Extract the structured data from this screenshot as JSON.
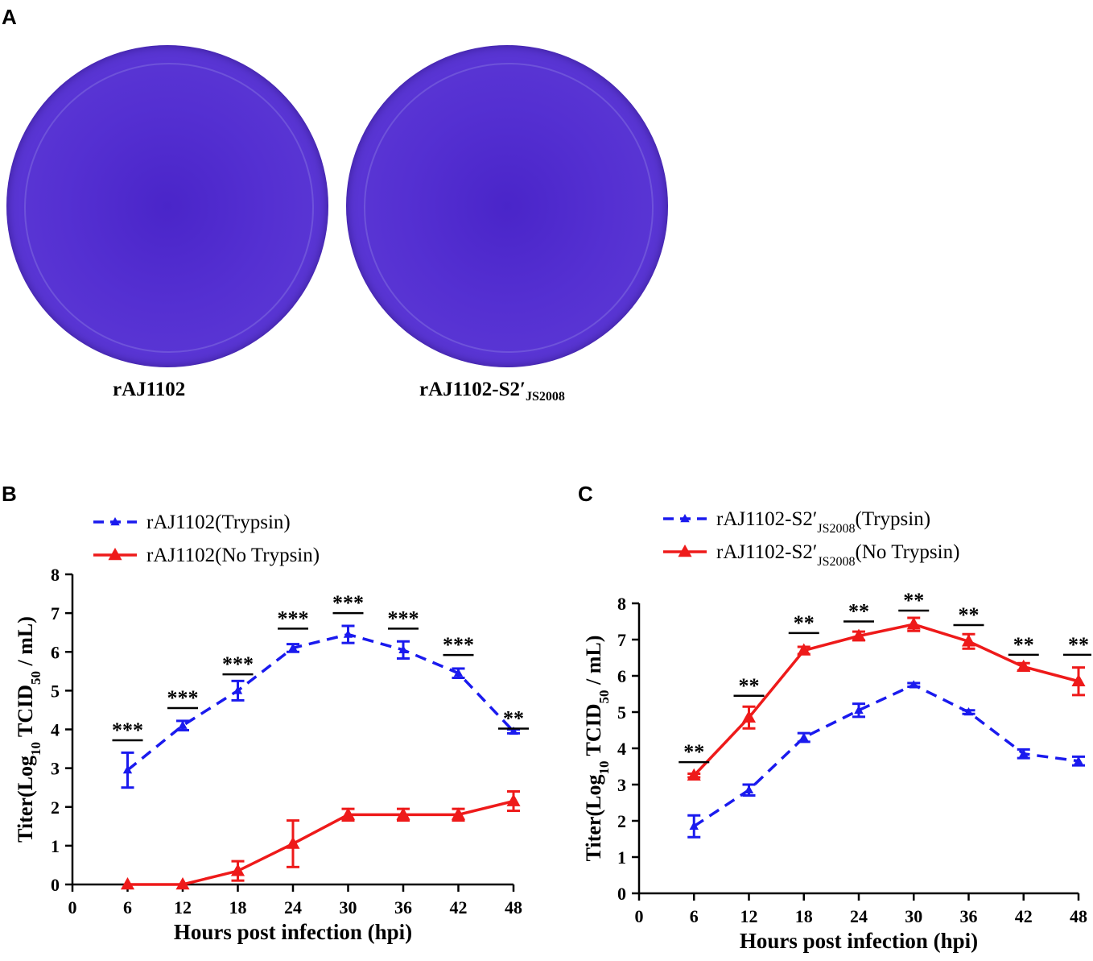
{
  "panels": {
    "a": {
      "letter": "A"
    },
    "b": {
      "letter": "B"
    },
    "c": {
      "letter": "C"
    }
  },
  "plates": [
    {
      "label": "rAJ1102",
      "sub": ""
    },
    {
      "label": "rAJ1102-S2′",
      "sub": "JS2008"
    }
  ],
  "colors": {
    "trypsin": "#1a1aee",
    "no_trypsin": "#ee1a1a",
    "plate": "#5530d2"
  },
  "chart_data": [
    {
      "type": "line",
      "panel": "B",
      "xlabel": "Hours post infection (hpi)",
      "ylabel_parts": [
        "Titer(Log",
        "10",
        " TCID",
        "50",
        " / mL)"
      ],
      "x_ticks": [
        0,
        6,
        12,
        18,
        24,
        30,
        36,
        42,
        48
      ],
      "y_ticks": [
        0,
        1,
        2,
        3,
        4,
        5,
        6,
        7,
        8
      ],
      "xlim": [
        0,
        48
      ],
      "ylim": [
        0,
        8
      ],
      "x": [
        6,
        12,
        18,
        24,
        30,
        36,
        42,
        48
      ],
      "series": [
        {
          "name": "rAJ1102(Trypsin)",
          "name_parts": [
            "rAJ1102(Trypsin)"
          ],
          "style": "dashed",
          "color": "#1a1aee",
          "values": [
            2.95,
            4.1,
            5.0,
            6.1,
            6.45,
            6.05,
            5.45,
            3.95
          ],
          "errors": [
            0.45,
            0.12,
            0.25,
            0.1,
            0.22,
            0.22,
            0.12,
            0.05
          ]
        },
        {
          "name": "rAJ1102(No Trypsin)",
          "name_parts": [
            "rAJ1102(No Trypsin)"
          ],
          "style": "solid",
          "color": "#ee1a1a",
          "values": [
            0.0,
            0.0,
            0.35,
            1.05,
            1.8,
            1.8,
            1.8,
            2.15
          ],
          "errors": [
            0.0,
            0.0,
            0.25,
            0.6,
            0.15,
            0.15,
            0.15,
            0.25
          ]
        }
      ],
      "significance": [
        "***",
        "***",
        "***",
        "***",
        "***",
        "***",
        "***",
        "**"
      ],
      "sig_levels": [
        3.72,
        4.55,
        5.42,
        6.6,
        7.0,
        6.6,
        5.92,
        4.02
      ]
    },
    {
      "type": "line",
      "panel": "C",
      "xlabel": "Hours post infection (hpi)",
      "ylabel_parts": [
        "Titer(Log",
        "10",
        " TCID",
        "50",
        " / mL)"
      ],
      "x_ticks": [
        0,
        6,
        12,
        18,
        24,
        30,
        36,
        42,
        48
      ],
      "y_ticks": [
        0,
        1,
        2,
        3,
        4,
        5,
        6,
        7,
        8
      ],
      "xlim": [
        0,
        48
      ],
      "ylim": [
        0,
        8
      ],
      "x": [
        6,
        12,
        18,
        24,
        30,
        36,
        42,
        48
      ],
      "series": [
        {
          "name": "rAJ1102-S2′JS2008(Trypsin)",
          "name_parts": [
            "rAJ1102-S2′",
            "JS2008",
            "(Trypsin)"
          ],
          "style": "dashed",
          "color": "#1a1aee",
          "values": [
            1.85,
            2.85,
            4.3,
            5.05,
            5.75,
            5.0,
            3.85,
            3.65
          ],
          "errors": [
            0.3,
            0.15,
            0.12,
            0.18,
            0.05,
            0.05,
            0.12,
            0.12
          ]
        },
        {
          "name": "rAJ1102-S2′JS2008(No Trypsin)",
          "name_parts": [
            "rAJ1102-S2′",
            "JS2008",
            "(No Trypsin)"
          ],
          "style": "solid",
          "color": "#ee1a1a",
          "values": [
            3.25,
            4.85,
            6.7,
            7.1,
            7.42,
            6.95,
            6.25,
            5.85
          ],
          "errors": [
            0.05,
            0.3,
            0.1,
            0.12,
            0.18,
            0.2,
            0.1,
            0.38
          ]
        }
      ],
      "significance": [
        "**",
        "**",
        "**",
        "**",
        "**",
        "**",
        "**",
        "**"
      ],
      "sig_levels": [
        3.62,
        5.45,
        7.18,
        7.5,
        7.8,
        7.4,
        6.58,
        6.58
      ]
    }
  ]
}
